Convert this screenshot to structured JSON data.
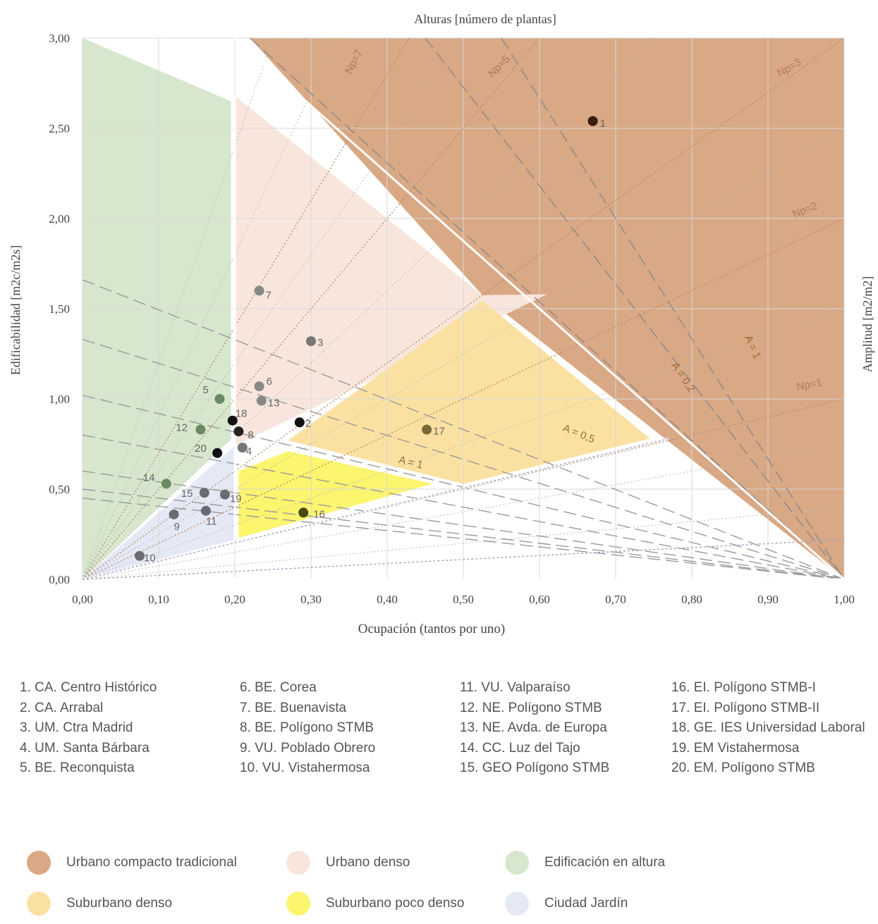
{
  "chart_data": {
    "type": "scatter",
    "title": "Alturas [número de plantas]",
    "xlabel": "Ocupación (tantos por uno)",
    "ylabel": "Edificabilidad  [m2c/m2s]",
    "y2label": "Amplitud  [m2/m2]",
    "xlim": [
      0,
      1
    ],
    "ylim": [
      0,
      3
    ],
    "x_ticks": [
      "0,00",
      "0,10",
      "0,20",
      "0,30",
      "0,40",
      "0,50",
      "0,60",
      "0,70",
      "0,80",
      "0,90",
      "1,00"
    ],
    "y_ticks": [
      "0,00",
      "0,50",
      "1,00",
      "1,50",
      "2,00",
      "2,50",
      "3,00"
    ],
    "grid": true,
    "points": [
      {
        "id": "1",
        "x": 0.67,
        "y": 2.54,
        "color": "#3a1a08"
      },
      {
        "id": "2",
        "x": 0.285,
        "y": 0.87,
        "color": "#111111"
      },
      {
        "id": "3",
        "x": 0.3,
        "y": 1.32,
        "color": "#777777"
      },
      {
        "id": "4",
        "x": 0.21,
        "y": 0.73,
        "color": "#777777"
      },
      {
        "id": "5",
        "x": 0.18,
        "y": 1.0,
        "color": "#6b8a64"
      },
      {
        "id": "6",
        "x": 0.232,
        "y": 1.07,
        "color": "#888888"
      },
      {
        "id": "7",
        "x": 0.232,
        "y": 1.6,
        "color": "#888888"
      },
      {
        "id": "8",
        "x": 0.205,
        "y": 0.82,
        "color": "#222222"
      },
      {
        "id": "9",
        "x": 0.12,
        "y": 0.36,
        "color": "#6a6a72"
      },
      {
        "id": "10",
        "x": 0.075,
        "y": 0.13,
        "color": "#6a6a72"
      },
      {
        "id": "11",
        "x": 0.162,
        "y": 0.38,
        "color": "#6a6a72"
      },
      {
        "id": "12",
        "x": 0.155,
        "y": 0.83,
        "color": "#6b8a64"
      },
      {
        "id": "13",
        "x": 0.235,
        "y": 0.99,
        "color": "#888888"
      },
      {
        "id": "14",
        "x": 0.11,
        "y": 0.53,
        "color": "#6b8a64"
      },
      {
        "id": "15",
        "x": 0.16,
        "y": 0.48,
        "color": "#6a6a72"
      },
      {
        "id": "16",
        "x": 0.29,
        "y": 0.37,
        "color": "#4a4a10"
      },
      {
        "id": "17",
        "x": 0.452,
        "y": 0.83,
        "color": "#7a6a3a"
      },
      {
        "id": "18",
        "x": 0.197,
        "y": 0.88,
        "color": "#111111"
      },
      {
        "id": "19",
        "x": 0.187,
        "y": 0.47,
        "color": "#6a6a72"
      },
      {
        "id": "20",
        "x": 0.177,
        "y": 0.7,
        "color": "#111111"
      }
    ],
    "regions": [
      {
        "name": "Urbano compacto tradicional",
        "color": "#d9a884",
        "polygon": [
          [
            0.22,
            3
          ],
          [
            1,
            3
          ],
          [
            1,
            0
          ],
          [
            0.525,
            1.575
          ]
        ]
      },
      {
        "name": "Urbano denso",
        "color": "#f8e6dc",
        "polygon": [
          [
            0.2,
            2.68
          ],
          [
            0.2,
            0.74
          ],
          [
            0.61,
            1.58
          ],
          [
            0.525,
            1.575
          ]
        ]
      },
      {
        "name": "Edificación en altura",
        "color": "#d6e7cd",
        "polygon": [
          [
            0,
            3
          ],
          [
            0.195,
            2.65
          ],
          [
            0.195,
            0.78
          ],
          [
            0,
            0
          ]
        ]
      },
      {
        "name": "Suburbano denso",
        "color": "#fbe1a1",
        "polygon": [
          [
            0.27,
            0.77
          ],
          [
            0.525,
            1.545
          ],
          [
            0.745,
            0.78
          ],
          [
            0.5,
            0.53
          ]
        ]
      },
      {
        "name": "Suburbano poco denso",
        "color": "#fcf56e",
        "polygon": [
          [
            0.205,
            0.6
          ],
          [
            0.27,
            0.71
          ],
          [
            0.46,
            0.53
          ],
          [
            0.205,
            0.23
          ]
        ]
      },
      {
        "name": "Ciudad Jardín",
        "color": "#e5e8f5",
        "polygon": [
          [
            0,
            0
          ],
          [
            0.2,
            0.74
          ],
          [
            0.2,
            0.22
          ]
        ]
      }
    ],
    "lines": [
      {
        "label": "Np=7",
        "type": "np",
        "value": 7
      },
      {
        "label": "Np=5",
        "type": "np",
        "value": 5
      },
      {
        "label": "Np=3",
        "type": "np",
        "value": 3
      },
      {
        "label": "Np=2",
        "type": "np",
        "value": 2
      },
      {
        "label": "Np=1",
        "type": "np",
        "value": 1
      },
      {
        "label": "A = 0,5",
        "type": "amp",
        "value": 0.5
      },
      {
        "label": "A = 1",
        "type": "amp",
        "value": 1
      },
      {
        "label": "A = 0,2",
        "type": "amp",
        "value": 0.2
      },
      {
        "label": "A = 1",
        "type": "amp",
        "value": 1
      }
    ]
  },
  "legend_items": [
    "1. CA. Centro Histórico",
    "6. BE. Corea",
    "11. VU. Valparaíso",
    "16. EI. Polígono STMB-I",
    "2. CA. Arrabal",
    "7. BE. Buenavista",
    "12. NE. Polígono STMB",
    "17. EI. Polígono STMB-II",
    "3. UM. Ctra Madrid",
    "8. BE. Polígono STMB",
    "13. NE. Avda. de Europa",
    "18. GE. IES Universidad Laboral",
    "4. UM. Santa Bárbara",
    "9. VU. Poblado Obrero",
    "14. CC. Luz del Tajo",
    "19. EM Vistahermosa",
    "5. BE. Reconquista",
    "10. VU. Vistahermosa",
    "15. GEO Polígono STMB",
    "20. EM. Polígono STMB"
  ],
  "zones": [
    {
      "label": "Urbano compacto tradicional",
      "color": "#d9a884"
    },
    {
      "label": "Urbano denso",
      "color": "#f8e6dc"
    },
    {
      "label": "Edificación en altura",
      "color": "#d6e7cd"
    },
    {
      "label": "Suburbano denso",
      "color": "#fbe1a1"
    },
    {
      "label": "Suburbano poco denso",
      "color": "#fcf56e"
    },
    {
      "label": "Ciudad Jardín",
      "color": "#e5e8f5"
    }
  ]
}
